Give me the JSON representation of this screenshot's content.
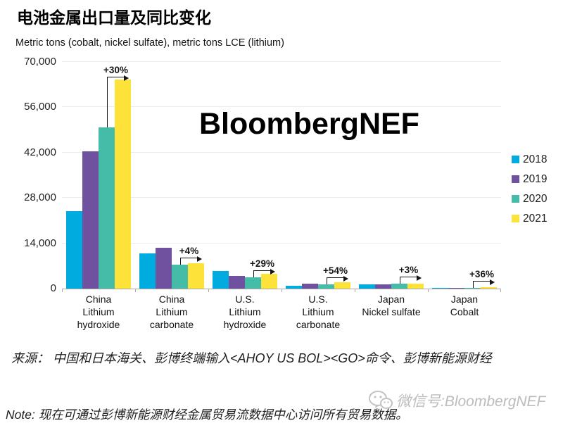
{
  "title": "电池金属出口量及同比变化",
  "subtitle": "Metric tons (cobalt, nickel sulfate), metric tons LCE (lithium)",
  "watermark": "BloombergNEF",
  "source": "来源： 中国和日本海关、彭博终端输入<AHOY US BOL><GO>命令、彭博新能源财经",
  "note": "Note: 现在可通过彭博新能源财经金属贸易流数据中心访问所有贸易数据。",
  "wechat_watermark": "微信号:BloombergNEF",
  "chart_data": {
    "type": "bar",
    "title": "电池金属出口量及同比变化",
    "subtitle": "Metric tons (cobalt, nickel sulfate), metric tons LCE (lithium)",
    "xlabel": "",
    "ylabel": "",
    "ylim": [
      0,
      70000
    ],
    "y_ticks": [
      0,
      14000,
      28000,
      42000,
      56000,
      70000
    ],
    "y_tick_labels": [
      "0",
      "14,000",
      "28,000",
      "42,000",
      "56,000",
      "70,000"
    ],
    "grid": true,
    "legend_position": "right",
    "categories": [
      [
        "China",
        "Lithium",
        "hydroxide"
      ],
      [
        "China",
        "Lithium",
        "carbonate"
      ],
      [
        "U.S.",
        "Lithium",
        "hydroxide"
      ],
      [
        "U.S.",
        "Lithium",
        "carbonate"
      ],
      [
        "Japan",
        "Nickel sulfate"
      ],
      [
        "Japan",
        "Cobalt"
      ]
    ],
    "series": [
      {
        "name": "2018",
        "color": "#00ACDF",
        "values": [
          24000,
          10800,
          5400,
          950,
          1400,
          250
        ]
      },
      {
        "name": "2019",
        "color": "#7051A0",
        "values": [
          42500,
          12600,
          3900,
          1450,
          1400,
          270
        ]
      },
      {
        "name": "2020",
        "color": "#45BCA8",
        "values": [
          49700,
          7500,
          3500,
          1300,
          1450,
          290
        ]
      },
      {
        "name": "2021",
        "color": "#FDE23A",
        "values": [
          64600,
          7800,
          4500,
          2000,
          1500,
          395
        ]
      }
    ],
    "annotations": [
      {
        "group": 0,
        "label": "+30%",
        "meaning": "2021 vs 2020"
      },
      {
        "group": 1,
        "label": "+4%",
        "meaning": "2021 vs 2020"
      },
      {
        "group": 2,
        "label": "+29%",
        "meaning": "2021 vs 2020"
      },
      {
        "group": 3,
        "label": "+54%",
        "meaning": "2021 vs 2020"
      },
      {
        "group": 4,
        "label": "+3%",
        "meaning": "2021 vs 2020"
      },
      {
        "group": 5,
        "label": "+36%",
        "meaning": "2021 vs 2020"
      }
    ]
  }
}
